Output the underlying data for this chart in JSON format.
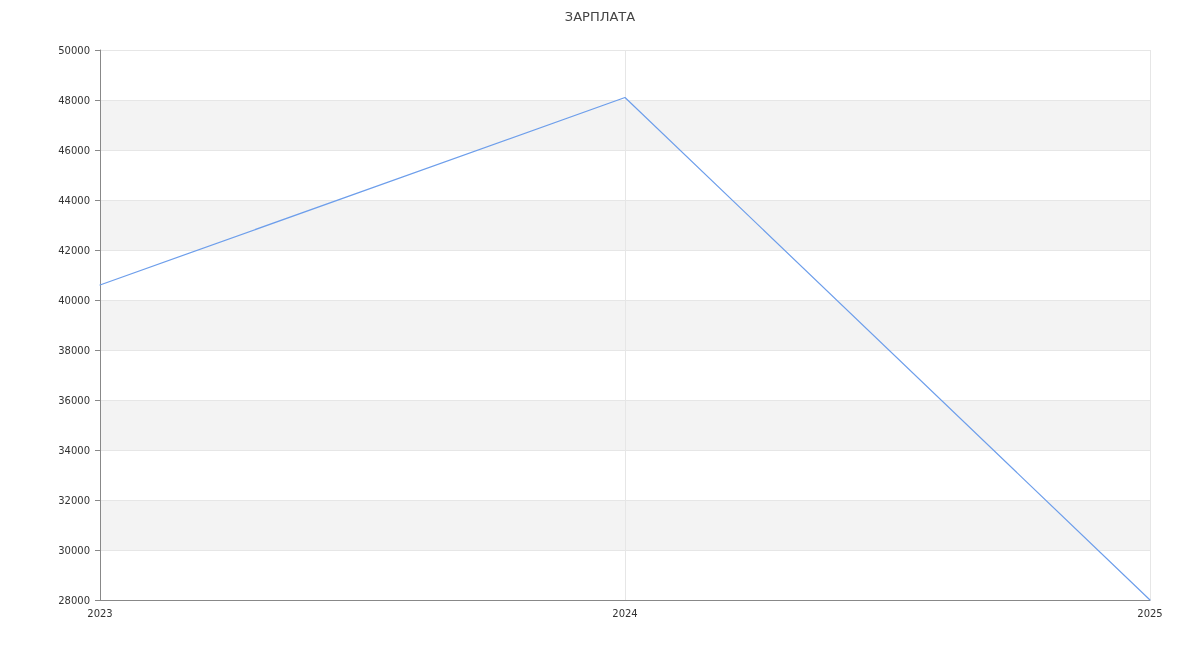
{
  "chart_data": {
    "type": "line",
    "title": "ЗАРПЛАТА",
    "x": [
      2023,
      2024,
      2025
    ],
    "xlim": [
      2023,
      2025
    ],
    "xticks": [
      2023,
      2024,
      2025
    ],
    "series": [
      {
        "color": "#6d9eeb",
        "values": [
          40600,
          48100,
          28000
        ]
      }
    ],
    "ylim": [
      28000,
      50000
    ],
    "yticks": [
      28000,
      30000,
      32000,
      34000,
      36000,
      38000,
      40000,
      42000,
      44000,
      46000,
      48000,
      50000
    ],
    "grid": true,
    "marker": "none",
    "line_style": "solid"
  }
}
